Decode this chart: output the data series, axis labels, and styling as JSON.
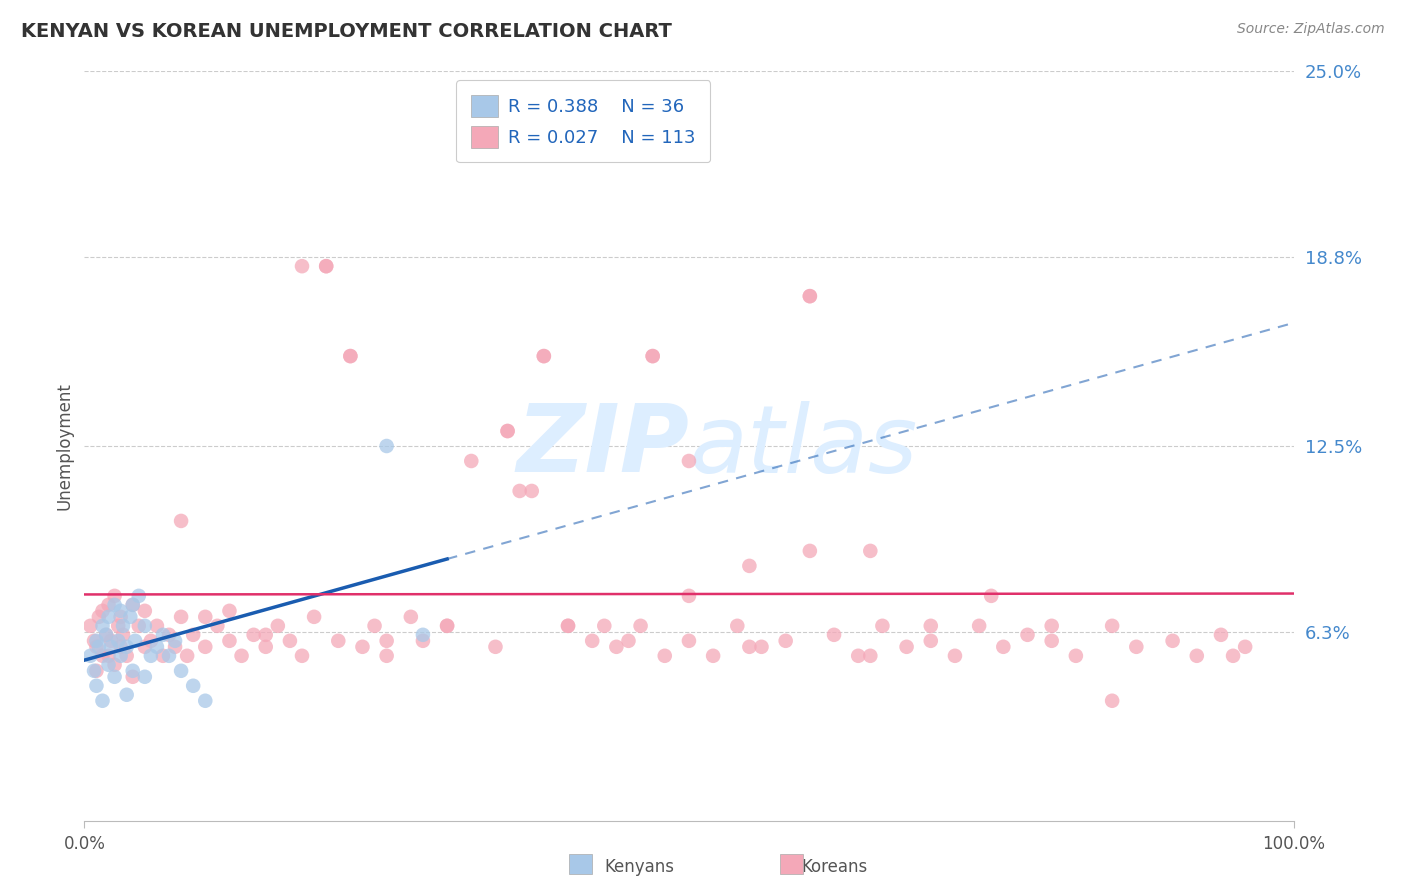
{
  "title": "KENYAN VS KOREAN UNEMPLOYMENT CORRELATION CHART",
  "source": "Source: ZipAtlas.com",
  "ylabel": "Unemployment",
  "xmin": 0.0,
  "xmax": 1.0,
  "ymin": 0.0,
  "ymax": 0.25,
  "yticks": [
    0.063,
    0.125,
    0.188,
    0.25
  ],
  "ytick_labels": [
    "6.3%",
    "12.5%",
    "18.8%",
    "25.0%"
  ],
  "kenyan_color": "#a8c8e8",
  "korean_color": "#f4a8b8",
  "kenyan_line_color": "#1a5cb0",
  "korean_line_color": "#e0306a",
  "watermark_color": "#ddeeff",
  "grid_color": "#cccccc",
  "background_color": "#ffffff",
  "title_color": "#333333",
  "source_color": "#888888",
  "ylabel_color": "#555555",
  "ytick_color": "#4488cc",
  "legend_r1": "R = 0.388",
  "legend_n1": "N = 36",
  "legend_r2": "R = 0.027",
  "legend_n2": "N = 113",
  "legend_label1": "Kenyans",
  "legend_label2": "Koreans",
  "kenyan_x": [
    0.005,
    0.008,
    0.01,
    0.01,
    0.012,
    0.015,
    0.015,
    0.018,
    0.02,
    0.02,
    0.022,
    0.025,
    0.025,
    0.028,
    0.03,
    0.03,
    0.032,
    0.035,
    0.035,
    0.038,
    0.04,
    0.04,
    0.042,
    0.045,
    0.05,
    0.05,
    0.055,
    0.06,
    0.065,
    0.07,
    0.075,
    0.08,
    0.09,
    0.1,
    0.25,
    0.28
  ],
  "kenyan_y": [
    0.055,
    0.05,
    0.06,
    0.045,
    0.058,
    0.065,
    0.04,
    0.062,
    0.068,
    0.052,
    0.058,
    0.072,
    0.048,
    0.06,
    0.07,
    0.055,
    0.065,
    0.058,
    0.042,
    0.068,
    0.072,
    0.05,
    0.06,
    0.075,
    0.065,
    0.048,
    0.055,
    0.058,
    0.062,
    0.055,
    0.06,
    0.05,
    0.045,
    0.04,
    0.125,
    0.062
  ],
  "korean_x": [
    0.005,
    0.008,
    0.01,
    0.01,
    0.012,
    0.015,
    0.015,
    0.018,
    0.02,
    0.02,
    0.022,
    0.025,
    0.025,
    0.028,
    0.03,
    0.03,
    0.032,
    0.035,
    0.04,
    0.04,
    0.045,
    0.05,
    0.05,
    0.055,
    0.06,
    0.065,
    0.07,
    0.075,
    0.08,
    0.085,
    0.09,
    0.1,
    0.11,
    0.12,
    0.13,
    0.14,
    0.15,
    0.16,
    0.17,
    0.18,
    0.19,
    0.2,
    0.21,
    0.22,
    0.23,
    0.24,
    0.25,
    0.27,
    0.28,
    0.3,
    0.32,
    0.34,
    0.35,
    0.36,
    0.38,
    0.4,
    0.42,
    0.44,
    0.46,
    0.48,
    0.5,
    0.52,
    0.54,
    0.56,
    0.58,
    0.6,
    0.62,
    0.64,
    0.66,
    0.68,
    0.7,
    0.72,
    0.74,
    0.76,
    0.78,
    0.8,
    0.82,
    0.85,
    0.87,
    0.9,
    0.92,
    0.94,
    0.96,
    0.37,
    0.43,
    0.5,
    0.47,
    0.6,
    0.65,
    0.2,
    0.38,
    0.47,
    0.55,
    0.75,
    0.8,
    0.85,
    0.5,
    0.6,
    0.7,
    0.35,
    0.4,
    0.45,
    0.55,
    0.65,
    0.3,
    0.25,
    0.15,
    0.08,
    0.1,
    0.95,
    0.18,
    0.22,
    0.12
  ],
  "korean_y": [
    0.065,
    0.06,
    0.058,
    0.05,
    0.068,
    0.07,
    0.055,
    0.062,
    0.072,
    0.055,
    0.06,
    0.075,
    0.052,
    0.065,
    0.068,
    0.058,
    0.062,
    0.055,
    0.072,
    0.048,
    0.065,
    0.07,
    0.058,
    0.06,
    0.065,
    0.055,
    0.062,
    0.058,
    0.068,
    0.055,
    0.062,
    0.058,
    0.065,
    0.06,
    0.055,
    0.062,
    0.058,
    0.065,
    0.06,
    0.055,
    0.068,
    0.185,
    0.06,
    0.155,
    0.058,
    0.065,
    0.055,
    0.068,
    0.06,
    0.065,
    0.12,
    0.058,
    0.13,
    0.11,
    0.155,
    0.065,
    0.06,
    0.058,
    0.065,
    0.055,
    0.06,
    0.055,
    0.065,
    0.058,
    0.06,
    0.175,
    0.062,
    0.055,
    0.065,
    0.058,
    0.06,
    0.055,
    0.065,
    0.058,
    0.062,
    0.06,
    0.055,
    0.065,
    0.058,
    0.06,
    0.055,
    0.062,
    0.058,
    0.11,
    0.065,
    0.12,
    0.155,
    0.175,
    0.09,
    0.185,
    0.155,
    0.155,
    0.085,
    0.075,
    0.065,
    0.04,
    0.075,
    0.09,
    0.065,
    0.13,
    0.065,
    0.06,
    0.058,
    0.055,
    0.065,
    0.06,
    0.062,
    0.1,
    0.068,
    0.055,
    0.185,
    0.155,
    0.07
  ]
}
